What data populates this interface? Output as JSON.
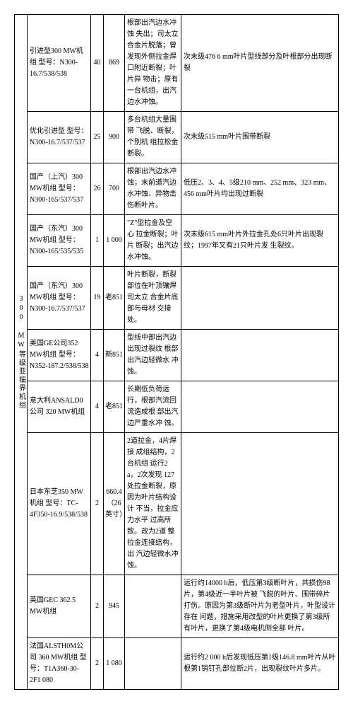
{
  "sideLabel": "300 MW等级亚临界机组",
  "rows": [
    {
      "model": "引进型300 MW机组 型号：N300-16.7/538/538",
      "c2": "40",
      "c3": "869",
      "c4": "根部出汽边水冲蚀 失出；司太立合金片脱落；曾发现外侧拉金焊 口附近断裂；叶片异 物击；原有一台机组，出汽边水冲蚀。",
      "c5": "次末级476 6 mm叶片型线部分及叶根部分出现断裂"
    },
    {
      "model": "优化引进型 型号：N300-16.7/537/537",
      "c2": "25",
      "c3": "900",
      "c4": "多台机组大量围带 飞脱、断裂，个别机 组拉松金断裂。",
      "c5": "次末级515 mm叶片围带断裂"
    },
    {
      "model": "国产（上汽）300 MW机组 型号：N300-165/537/537",
      "c2": "26",
      "c3": "700",
      "c4": "根部出汽边水冲蚀；末前道汽边水冲蚀、异物击伤断叶片。",
      "c5": "低压2、3、4、5级210 mm、252 mm、323 mm、456 mm叶片均出现过断裂"
    },
    {
      "model": "国产（东汽）300 MW机组 型号：N300-165/535/535",
      "c2": "1",
      "c3": "1 000",
      "c4": "\"Z\"型拉金及空心 拉金断裂；叶片 断裂；出汽边水冲蚀。",
      "c5": "次末级615 mm叶片外拉金孔处6只叶片出现裂纹；1997年又有21只叶片发 生裂纹。"
    },
    {
      "model": "国产（东汽）300 MW机组 型号：N300-16.7/537/537",
      "c2": "19",
      "c3": "老851",
      "c4": "叶片断裂，断裂部位在叶顶镶焊司太立 合金片底部与母材 交接处。",
      "c5": ""
    },
    {
      "model": "美国GE公司352 MW机组 型号：N352-187.2/538/538",
      "c2": "4",
      "c3": "新851",
      "c4": "型线中部出汽边出现过裂纹 根部出汽边轻微水 冲蚀。",
      "c5": ""
    },
    {
      "model": "意大利ANSALD0公司 320 MW机组",
      "c2": "4",
      "c3": "老851",
      "c4": "长期低负荷运行，根部汽流回流造成根 部出汽边严重水冲 蚀。",
      "c5": ""
    },
    {
      "model": "日本东芝350 MW机组 型号：TC-4F350-16.9/538/538",
      "c2": "2",
      "c3": "660.4（26 英寸）",
      "c4": "2道拉金，4片焊接 成组结构，2台机组 运行2 a，2次发现 127处拉金断裂，原 因为叶片结构设计 不当，拉金应力水平 过高所致。改为2道 整拉金连接结构，出 汽边轻微水冲蚀。",
      "c5": ""
    },
    {
      "model": "英国GEC 362.5 MW机组",
      "c2": "2",
      "c3": "945",
      "c4": "",
      "c5": "运行约14000 h后，低压第3级断叶片，共损伤98片，第4级近一半叶片被 飞脱的叶片、围带碎片打伤。原因为第3级断叶片为老型叶片，叶型设计存在 问题，措施采用改型的叶片更换了第3级所有叶片，更换了第4级电机侧全部 叶片。"
    },
    {
      "model": "法国ALSTH0M公司 360 MW机组 型号：T1A360-30-2F1 080",
      "c2": "2",
      "c3": "1 080",
      "c4": "",
      "c5": "运行约2 000 h后发现低压第1级146.8 mm叶片从叶根第1销钉孔部位断2片，出现裂纹叶片多片。"
    }
  ]
}
